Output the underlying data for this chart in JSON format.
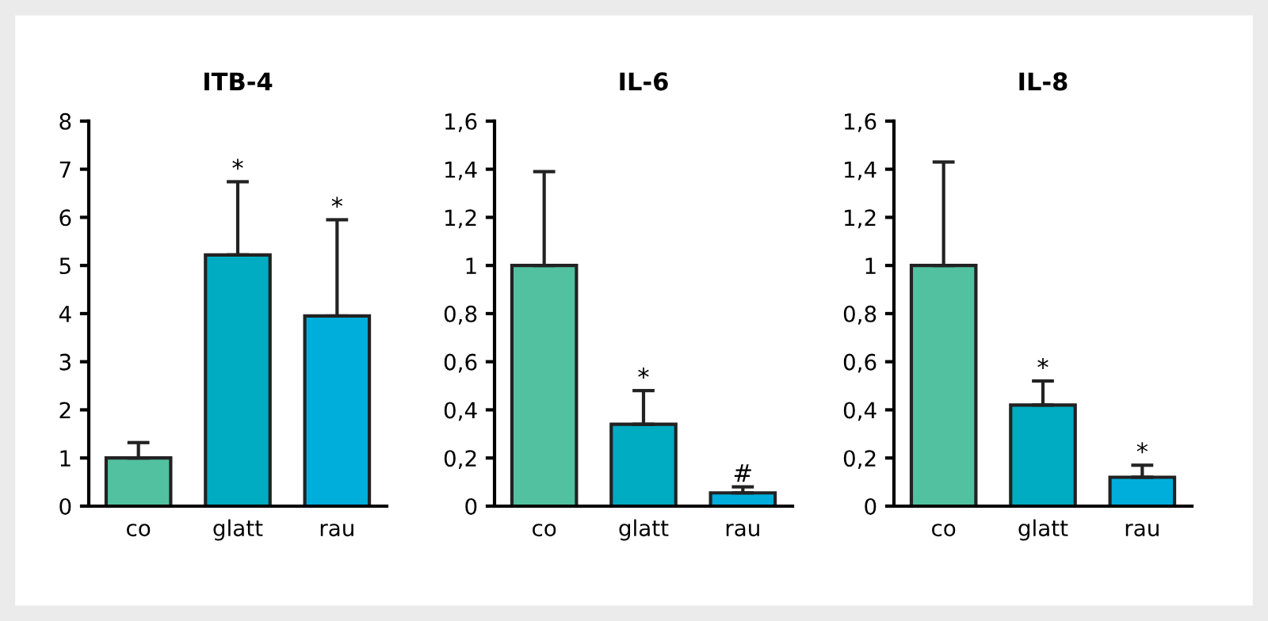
{
  "chart_data": [
    {
      "type": "bar",
      "title": "ITB-4",
      "categories": [
        "co",
        "glatt",
        "rau"
      ],
      "values": [
        1,
        5.22,
        3.95
      ],
      "colors": [
        "#52c1a0",
        "#00acc1",
        "#00aedb"
      ],
      "errors": [
        [
          1,
          1.32
        ],
        [
          5.22,
          6.74
        ],
        [
          3.95,
          5.95
        ]
      ],
      "ylim": [
        0,
        8
      ],
      "yticks": [
        0,
        1,
        2,
        3,
        4,
        5,
        6,
        7,
        8
      ],
      "grid": false,
      "legend": false,
      "annotations": [
        "*",
        "*"
      ]
    },
    {
      "type": "bar",
      "title": "IL-6",
      "categories": [
        "co",
        "glatt",
        "rau"
      ],
      "values": [
        1,
        0.34,
        0.055
      ],
      "colors": [
        "#52c1a0",
        "#00acc1",
        "#00aedb"
      ],
      "errors": [
        [
          1,
          1.39
        ],
        [
          0.34,
          0.48
        ],
        [
          0.055,
          0.08
        ]
      ],
      "ylim": [
        0,
        1.6
      ],
      "yticks": [
        0,
        {
          "value": 0.2,
          "label": "0,2"
        },
        {
          "value": 0.4,
          "label": "0,4"
        },
        {
          "value": 0.6,
          "label": "0,6"
        },
        {
          "value": 0.8,
          "label": "0,8"
        },
        1,
        {
          "value": 1.2,
          "label": "1,2"
        },
        {
          "value": 1.4,
          "label": "1,4"
        },
        {
          "value": 1.6,
          "label": "1,6"
        }
      ],
      "grid": false,
      "legend": false,
      "annotations": [
        "*",
        "#"
      ]
    },
    {
      "type": "bar",
      "title": "IL-8",
      "categories": [
        "co",
        "glatt",
        "rau"
      ],
      "values": [
        1,
        0.42,
        0.12
      ],
      "colors": [
        "#52c1a0",
        "#00acc1",
        "#00aedb"
      ],
      "errors": [
        [
          1,
          1.43
        ],
        [
          0.42,
          0.52
        ],
        [
          0.12,
          0.17
        ]
      ],
      "ylim": [
        0,
        1.6
      ],
      "yticks": [
        0,
        {
          "value": 0.2,
          "label": "0,2"
        },
        {
          "value": 0.4,
          "label": "0,4"
        },
        {
          "value": 0.6,
          "label": "0,6"
        },
        {
          "value": 0.8,
          "label": "0,8"
        },
        1,
        {
          "value": 1.2,
          "label": "1,2"
        },
        {
          "value": 1.4,
          "label": "1,4"
        },
        {
          "value": 1.6,
          "label": "1,6"
        }
      ],
      "grid": false,
      "legend": false,
      "annotations": [
        "*",
        "*"
      ]
    }
  ]
}
